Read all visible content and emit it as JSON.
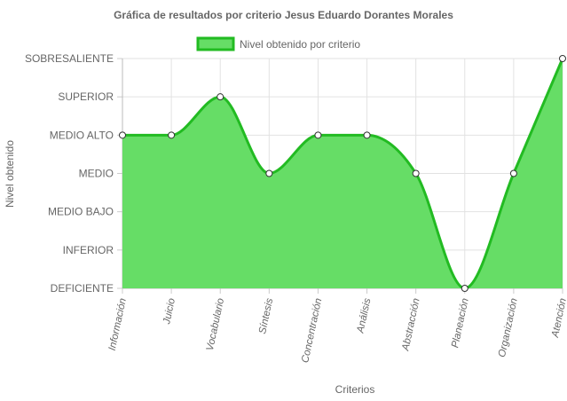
{
  "chart_data": {
    "type": "area",
    "title": "Gráfica de resultados por criterio Jesus Eduardo Dorantes Morales",
    "xlabel": "Criterios",
    "ylabel": "Nivel obtenido",
    "y_levels": [
      "DEFICIENTE",
      "INFERIOR",
      "MEDIO BAJO",
      "MEDIO",
      "MEDIO ALTO",
      "SUPERIOR",
      "SOBRESALIENTE"
    ],
    "categories": [
      "Información",
      "Juicio",
      "Vocabulario",
      "Síntesis",
      "Concentración",
      "Análisis",
      "Abstracción",
      "Planeación",
      "Organización",
      "Atención"
    ],
    "series": [
      {
        "name": "Nivel obtenido por criterio",
        "values": [
          "MEDIO ALTO",
          "MEDIO ALTO",
          "SUPERIOR",
          "MEDIO",
          "MEDIO ALTO",
          "MEDIO ALTO",
          "MEDIO",
          "DEFICIENTE",
          "MEDIO",
          "SOBRESALIENTE"
        ],
        "fill_color": "#66dd66",
        "line_color": "#22bb22"
      }
    ],
    "grid": true,
    "legend_position": "top"
  }
}
